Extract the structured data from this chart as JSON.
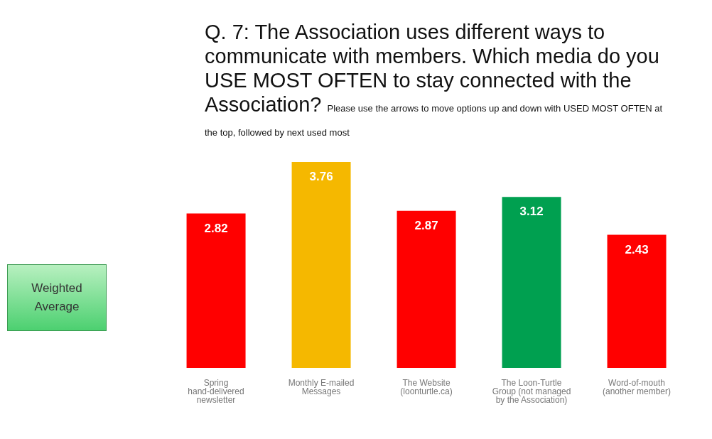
{
  "chart_data": {
    "type": "bar",
    "title": "Q. 7: The Association uses different ways to communicate with members. Which media do you USE MOST OFTEN to stay connected with the Association?",
    "subtitle": "Please use the arrows to move options up and down with USED MOST OFTEN at the top, followed  by next used most",
    "categories": [
      "Spring hand-delivered newsletter",
      "Monthly E-mailed Messages",
      "The Website (loonturtle.ca)",
      "The Loon-Turtle Group (not managed by the Association)",
      "Word-of-mouth (another member)"
    ],
    "values": [
      2.82,
      3.76,
      2.87,
      3.12,
      2.43
    ],
    "colors": [
      "#ff0000",
      "#f5b800",
      "#ff0000",
      "#00a050",
      "#ff0000"
    ],
    "data_labels": true,
    "annotations": [
      "Weighted Average"
    ]
  }
}
